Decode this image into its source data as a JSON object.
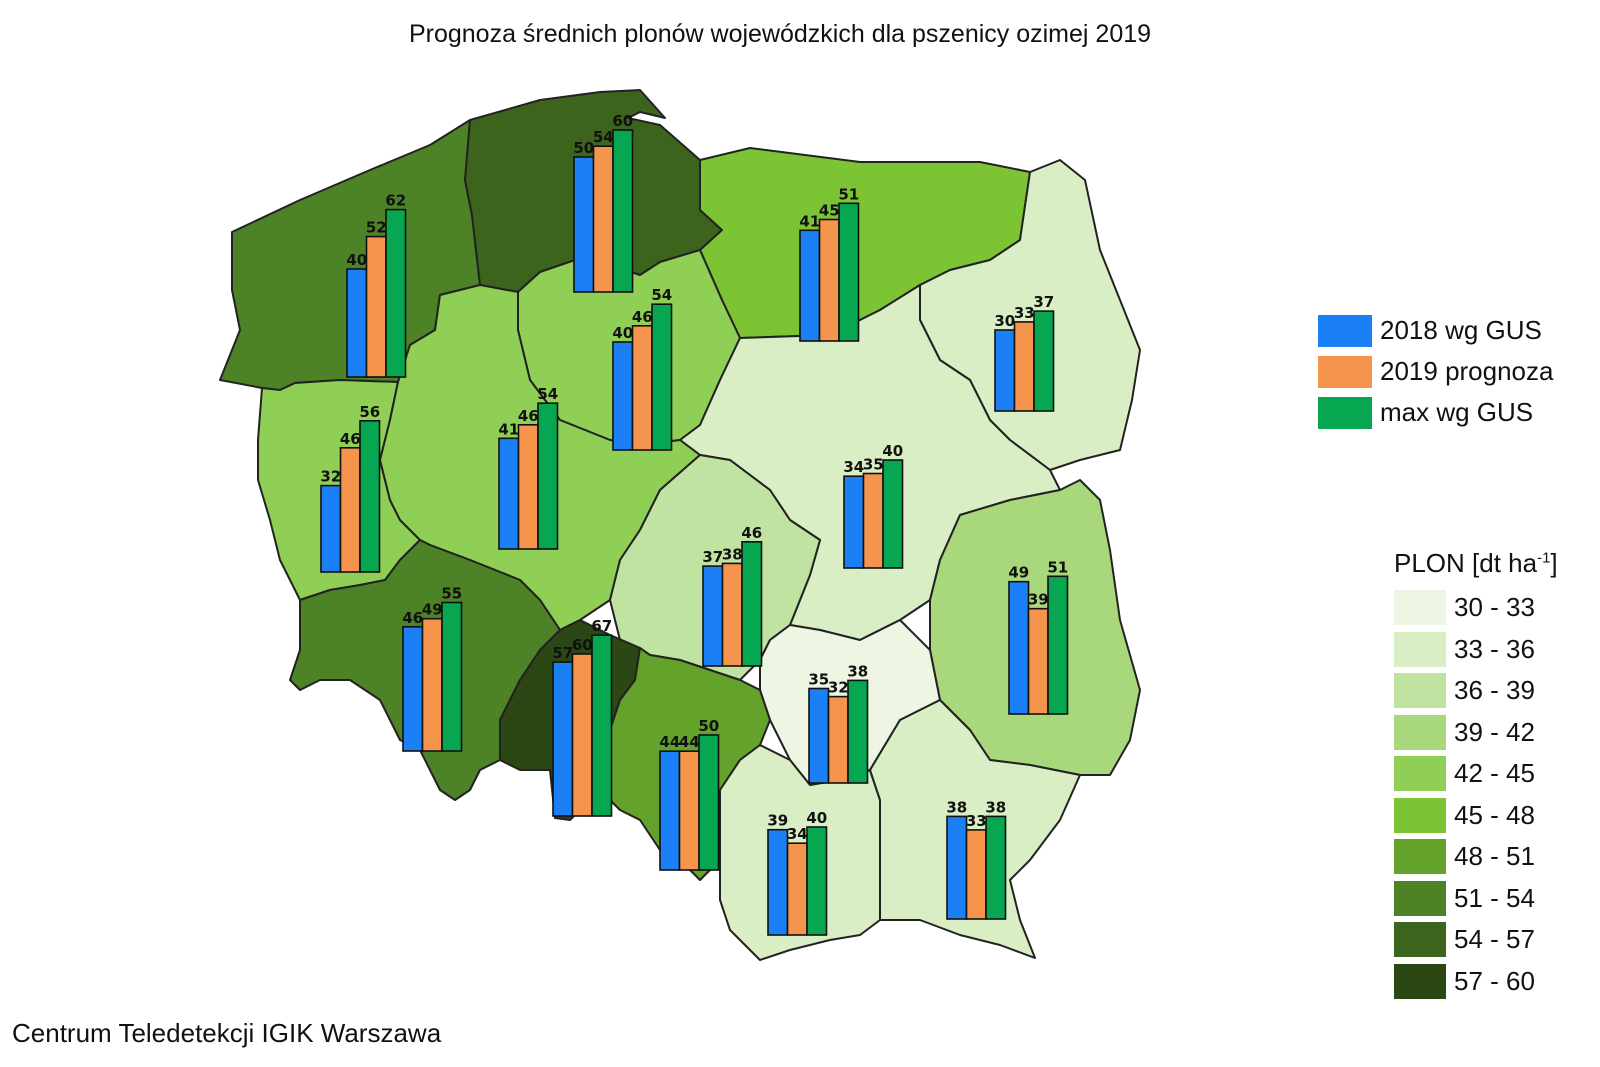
{
  "title": "Prognoza średnich plonów wojewódzkich dla pszenicy ozimej  2019",
  "footer": "Centrum Teledetekcji IGIK Warszawa",
  "series_legend": [
    {
      "label": "2018 wg GUS",
      "color": "#1b7ff5"
    },
    {
      "label": "2019 prognoza",
      "color": "#f5944c"
    },
    {
      "label": "max wg GUS",
      "color": "#07a650"
    }
  ],
  "class_legend": {
    "title": "PLON [dt ha",
    "title_sup": "-1",
    "title_end": "]",
    "classes": [
      {
        "label": "30 - 33",
        "color": "#edf6e2"
      },
      {
        "label": "33 - 36",
        "color": "#d9eec5"
      },
      {
        "label": "36 - 39",
        "color": "#c1e3a2"
      },
      {
        "label": "39 - 42",
        "color": "#a8d77c"
      },
      {
        "label": "42 - 45",
        "color": "#90cf56"
      },
      {
        "label": "45 - 48",
        "color": "#7cc434"
      },
      {
        "label": "48 - 51",
        "color": "#63a22b"
      },
      {
        "label": "51 - 54",
        "color": "#4e8226"
      },
      {
        "label": "54 - 57",
        "color": "#3d641c"
      },
      {
        "label": "57 - 60",
        "color": "#2b4713"
      }
    ]
  },
  "chart_data": {
    "type": "bar",
    "series": [
      "2018 wg GUS",
      "2019 prognoza",
      "max wg GUS"
    ],
    "regions": [
      {
        "values": [
          40,
          52,
          62
        ]
      },
      {
        "values": [
          50,
          54,
          60
        ]
      },
      {
        "values": [
          41,
          45,
          51
        ]
      },
      {
        "values": [
          30,
          33,
          37
        ]
      },
      {
        "values": [
          40,
          46,
          54
        ]
      },
      {
        "values": [
          32,
          46,
          56
        ]
      },
      {
        "values": [
          41,
          46,
          54
        ]
      },
      {
        "values": [
          34,
          35,
          40
        ]
      },
      {
        "values": [
          37,
          38,
          46
        ]
      },
      {
        "values": [
          49,
          39,
          51
        ]
      },
      {
        "values": [
          46,
          49,
          55
        ]
      },
      {
        "values": [
          57,
          60,
          67
        ]
      },
      {
        "values": [
          35,
          32,
          38
        ]
      },
      {
        "values": [
          44,
          44,
          50
        ]
      },
      {
        "values": [
          39,
          34,
          40
        ]
      },
      {
        "values": [
          38,
          33,
          38
        ]
      }
    ]
  }
}
